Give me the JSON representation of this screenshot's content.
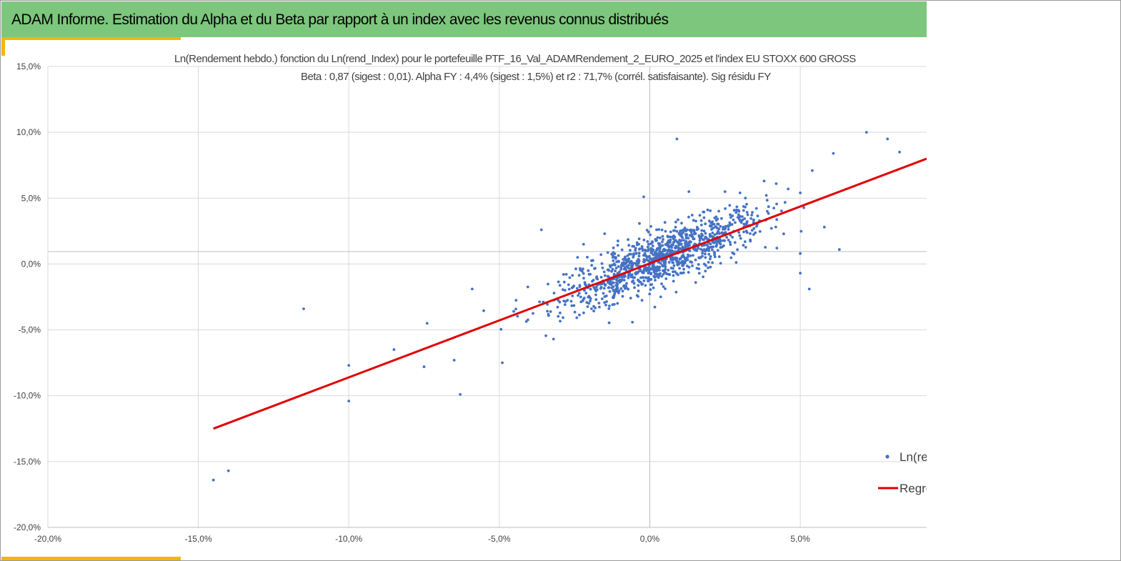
{
  "header": {
    "title": "ADAM Informe. Estimation du Alpha et du Beta par rapport à un index avec les revenus connus distribués"
  },
  "colors": {
    "banner": "#7dc67d",
    "accent": "#f0b800",
    "points": "#4472c4",
    "regression": "#e00000",
    "grid": "#d9d9d9",
    "axis": "#bfbfbf"
  },
  "chart_data": {
    "type": "scatter",
    "title_lines": [
      "Ln(Rendement hebdo.) fonction du Ln(rend_Index) pour le portefeuille PTF_16_Val_ADAMRendement_2_EURO_2025 et l'index EU STOXX 600 GROSS",
      "Beta : 0,87 (sigest : 0,01).  Alpha FY : 4,4% (sigest : 1,5%) et r2 : 71,7% (corrél. satisfaisante). Sig résidu FY"
    ],
    "xlim": [
      -20,
      9.2
    ],
    "ylim": [
      -20,
      15
    ],
    "x_ticks": [
      -20,
      -15,
      -10,
      -5,
      0,
      5
    ],
    "y_ticks": [
      15,
      10,
      5,
      0,
      -5,
      -10,
      -15,
      -20
    ],
    "x_tick_labels": [
      "-20,0%",
      "-15,0%",
      "-10,0%",
      "-5,0%",
      "0,0%",
      "5,0%"
    ],
    "y_tick_labels": [
      "15,0%",
      "10,0%",
      "5,0%",
      "0,0%",
      "-5,0%",
      "-10,0%",
      "-15,0%",
      "-20,0%"
    ],
    "grid": true,
    "x_axis_crosses_y": 0,
    "y_axis_at_x": 0,
    "series": [
      {
        "name": "Ln(rend",
        "kind": "scatter",
        "color": "#4472c4",
        "notable_points": [
          [
            -14.5,
            -16.4
          ],
          [
            -14.0,
            -15.7
          ],
          [
            -11.5,
            -3.4
          ],
          [
            -10.0,
            -10.4
          ],
          [
            -10.0,
            -7.7
          ],
          [
            -8.5,
            -6.5
          ],
          [
            -7.5,
            -7.8
          ],
          [
            -7.4,
            -4.5
          ],
          [
            -6.3,
            -9.9
          ],
          [
            -6.5,
            -7.3
          ],
          [
            -5.9,
            -1.9
          ],
          [
            -4.9,
            -7.5
          ],
          [
            -3.6,
            2.6
          ],
          [
            -3.2,
            -5.7
          ],
          [
            -2.2,
            1.5
          ],
          [
            -1.5,
            2.3
          ],
          [
            -0.2,
            5.1
          ],
          [
            0.9,
            9.5
          ],
          [
            1.3,
            5.5
          ],
          [
            2.5,
            5.5
          ],
          [
            3.0,
            5.4
          ],
          [
            3.8,
            6.3
          ],
          [
            4.2,
            6.1
          ],
          [
            4.6,
            5.7
          ],
          [
            5.0,
            5.4
          ],
          [
            5.4,
            7.1
          ],
          [
            5.3,
            -1.9
          ],
          [
            5.0,
            -0.7
          ],
          [
            5.0,
            0.8
          ],
          [
            5.8,
            2.8
          ],
          [
            6.1,
            8.4
          ],
          [
            6.3,
            1.1
          ],
          [
            7.2,
            10.0
          ],
          [
            7.9,
            9.5
          ],
          [
            8.3,
            8.5
          ]
        ],
        "cloud": {
          "count": 1150,
          "x_mean": 0.4,
          "x_sd": 1.7,
          "slope": 0.87,
          "intercept": 0.1,
          "residual_sd": 1.0,
          "x_range": [
            -6.5,
            5.5
          ]
        }
      },
      {
        "name": "Regre",
        "kind": "line",
        "color": "#e00000",
        "x": [
          -14.5,
          9.2
        ],
        "y": [
          -12.5,
          8.0
        ]
      }
    ],
    "legend": {
      "position": "bottom-right",
      "entries": [
        "Ln(rend",
        "Regre"
      ]
    }
  }
}
